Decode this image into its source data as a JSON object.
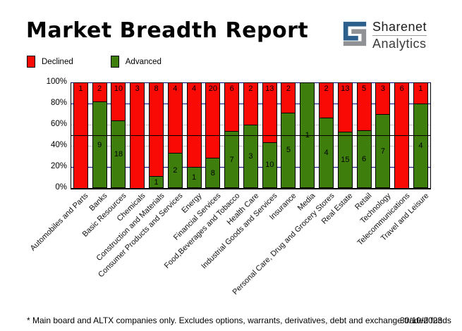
{
  "title": "Market Breadth Report",
  "logo": {
    "line1": "Sharenet",
    "line2": "Analytics",
    "icon_blue": "#2d5f8c",
    "icon_gray": "#8f9194"
  },
  "legend": [
    {
      "label": "Declined",
      "color": "#fa0a05"
    },
    {
      "label": "Advanced",
      "color": "#3d7e0d"
    }
  ],
  "footer": {
    "note": "* Main board and ALTX companies only. Excludes options, warrants, derivatives, debt and exchange traded funds",
    "date": "30/10/2023"
  },
  "chart_data": {
    "type": "bar",
    "stacked": true,
    "normalized": "percent",
    "title": "Market Breadth Report",
    "categories": [
      "Automobiles and Parts",
      "Banks",
      "Basic Resources",
      "Chemicals",
      "Construction and Materials",
      "Consumer Products and Services",
      "Energy",
      "Financial Services",
      "Food,Beverages and Tobacco",
      "Health Care",
      "Industrial Goods and Services",
      "Insurance",
      "Media",
      "Personal Care, Drug and Grocery Stores",
      "Real Estate",
      "Retail",
      "Technology",
      "Telecommunications",
      "Travel and Leisure"
    ],
    "series": [
      {
        "name": "Declined",
        "color": "#fa0a05",
        "values": [
          1,
          2,
          10,
          3,
          8,
          4,
          4,
          20,
          6,
          2,
          13,
          2,
          0,
          2,
          13,
          5,
          3,
          6,
          1
        ]
      },
      {
        "name": "Advanced",
        "color": "#3d7e0d",
        "values": [
          0,
          9,
          18,
          0,
          1,
          2,
          1,
          8,
          7,
          3,
          10,
          5,
          1,
          4,
          15,
          6,
          7,
          0,
          4
        ]
      }
    ],
    "y_ticks": [
      {
        "label": "100%",
        "value": 100
      },
      {
        "label": "80%",
        "value": 80
      },
      {
        "label": "60%",
        "value": 60
      },
      {
        "label": "40%",
        "value": 40
      },
      {
        "label": "20%",
        "value": 20
      },
      {
        "label": "0%",
        "value": 0
      }
    ],
    "ylim": [
      0,
      100
    ],
    "gridlines": [
      {
        "y": 100,
        "color": "#000080"
      },
      {
        "y": 80,
        "color": "#000080"
      },
      {
        "y": 60,
        "color": "#c0c0c0"
      },
      {
        "y": 40,
        "color": "#c0c0c0"
      },
      {
        "y": 20,
        "color": "#000080"
      }
    ],
    "midline": {
      "y": 50,
      "color": "#000000"
    },
    "legend_position": "top-left",
    "value_labels": "shown-inside-segments"
  }
}
